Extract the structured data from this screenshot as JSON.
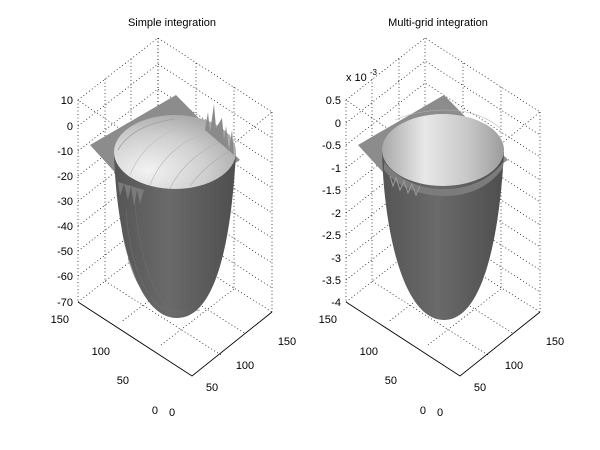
{
  "chart_data": [
    {
      "type": "surface",
      "title": "Simple integration",
      "zlim": [
        -70,
        10
      ],
      "z_ticks": [
        "10",
        "0",
        "-10",
        "-20",
        "-30",
        "-40",
        "-50",
        "-60",
        "-70"
      ],
      "x_ticks": [
        "0",
        "50",
        "100",
        "150"
      ],
      "y_ticks": [
        "0",
        "50",
        "100",
        "150"
      ],
      "z_exponent": "",
      "grid": true,
      "rim_artifacts": true
    },
    {
      "type": "surface",
      "title": "Multi-grid integration",
      "zlim": [
        -4,
        0.5
      ],
      "z_ticks": [
        "0.5",
        "0",
        "-0.5",
        "-1",
        "-1.5",
        "-2",
        "-2.5",
        "-3",
        "-3.5",
        "-4"
      ],
      "x_ticks": [
        "0",
        "50",
        "100",
        "150"
      ],
      "y_ticks": [
        "0",
        "50",
        "100",
        "150"
      ],
      "z_exponent": "x 10^-3",
      "z_exponent_base": "x 10",
      "z_exponent_power": "-3",
      "grid": true,
      "rim_artifacts": false
    }
  ],
  "colors": {
    "plane": "#8c8c8c",
    "surface_dark": "#5a5a5a",
    "surface_light": "#e6e6e6",
    "grid": "#000000"
  }
}
